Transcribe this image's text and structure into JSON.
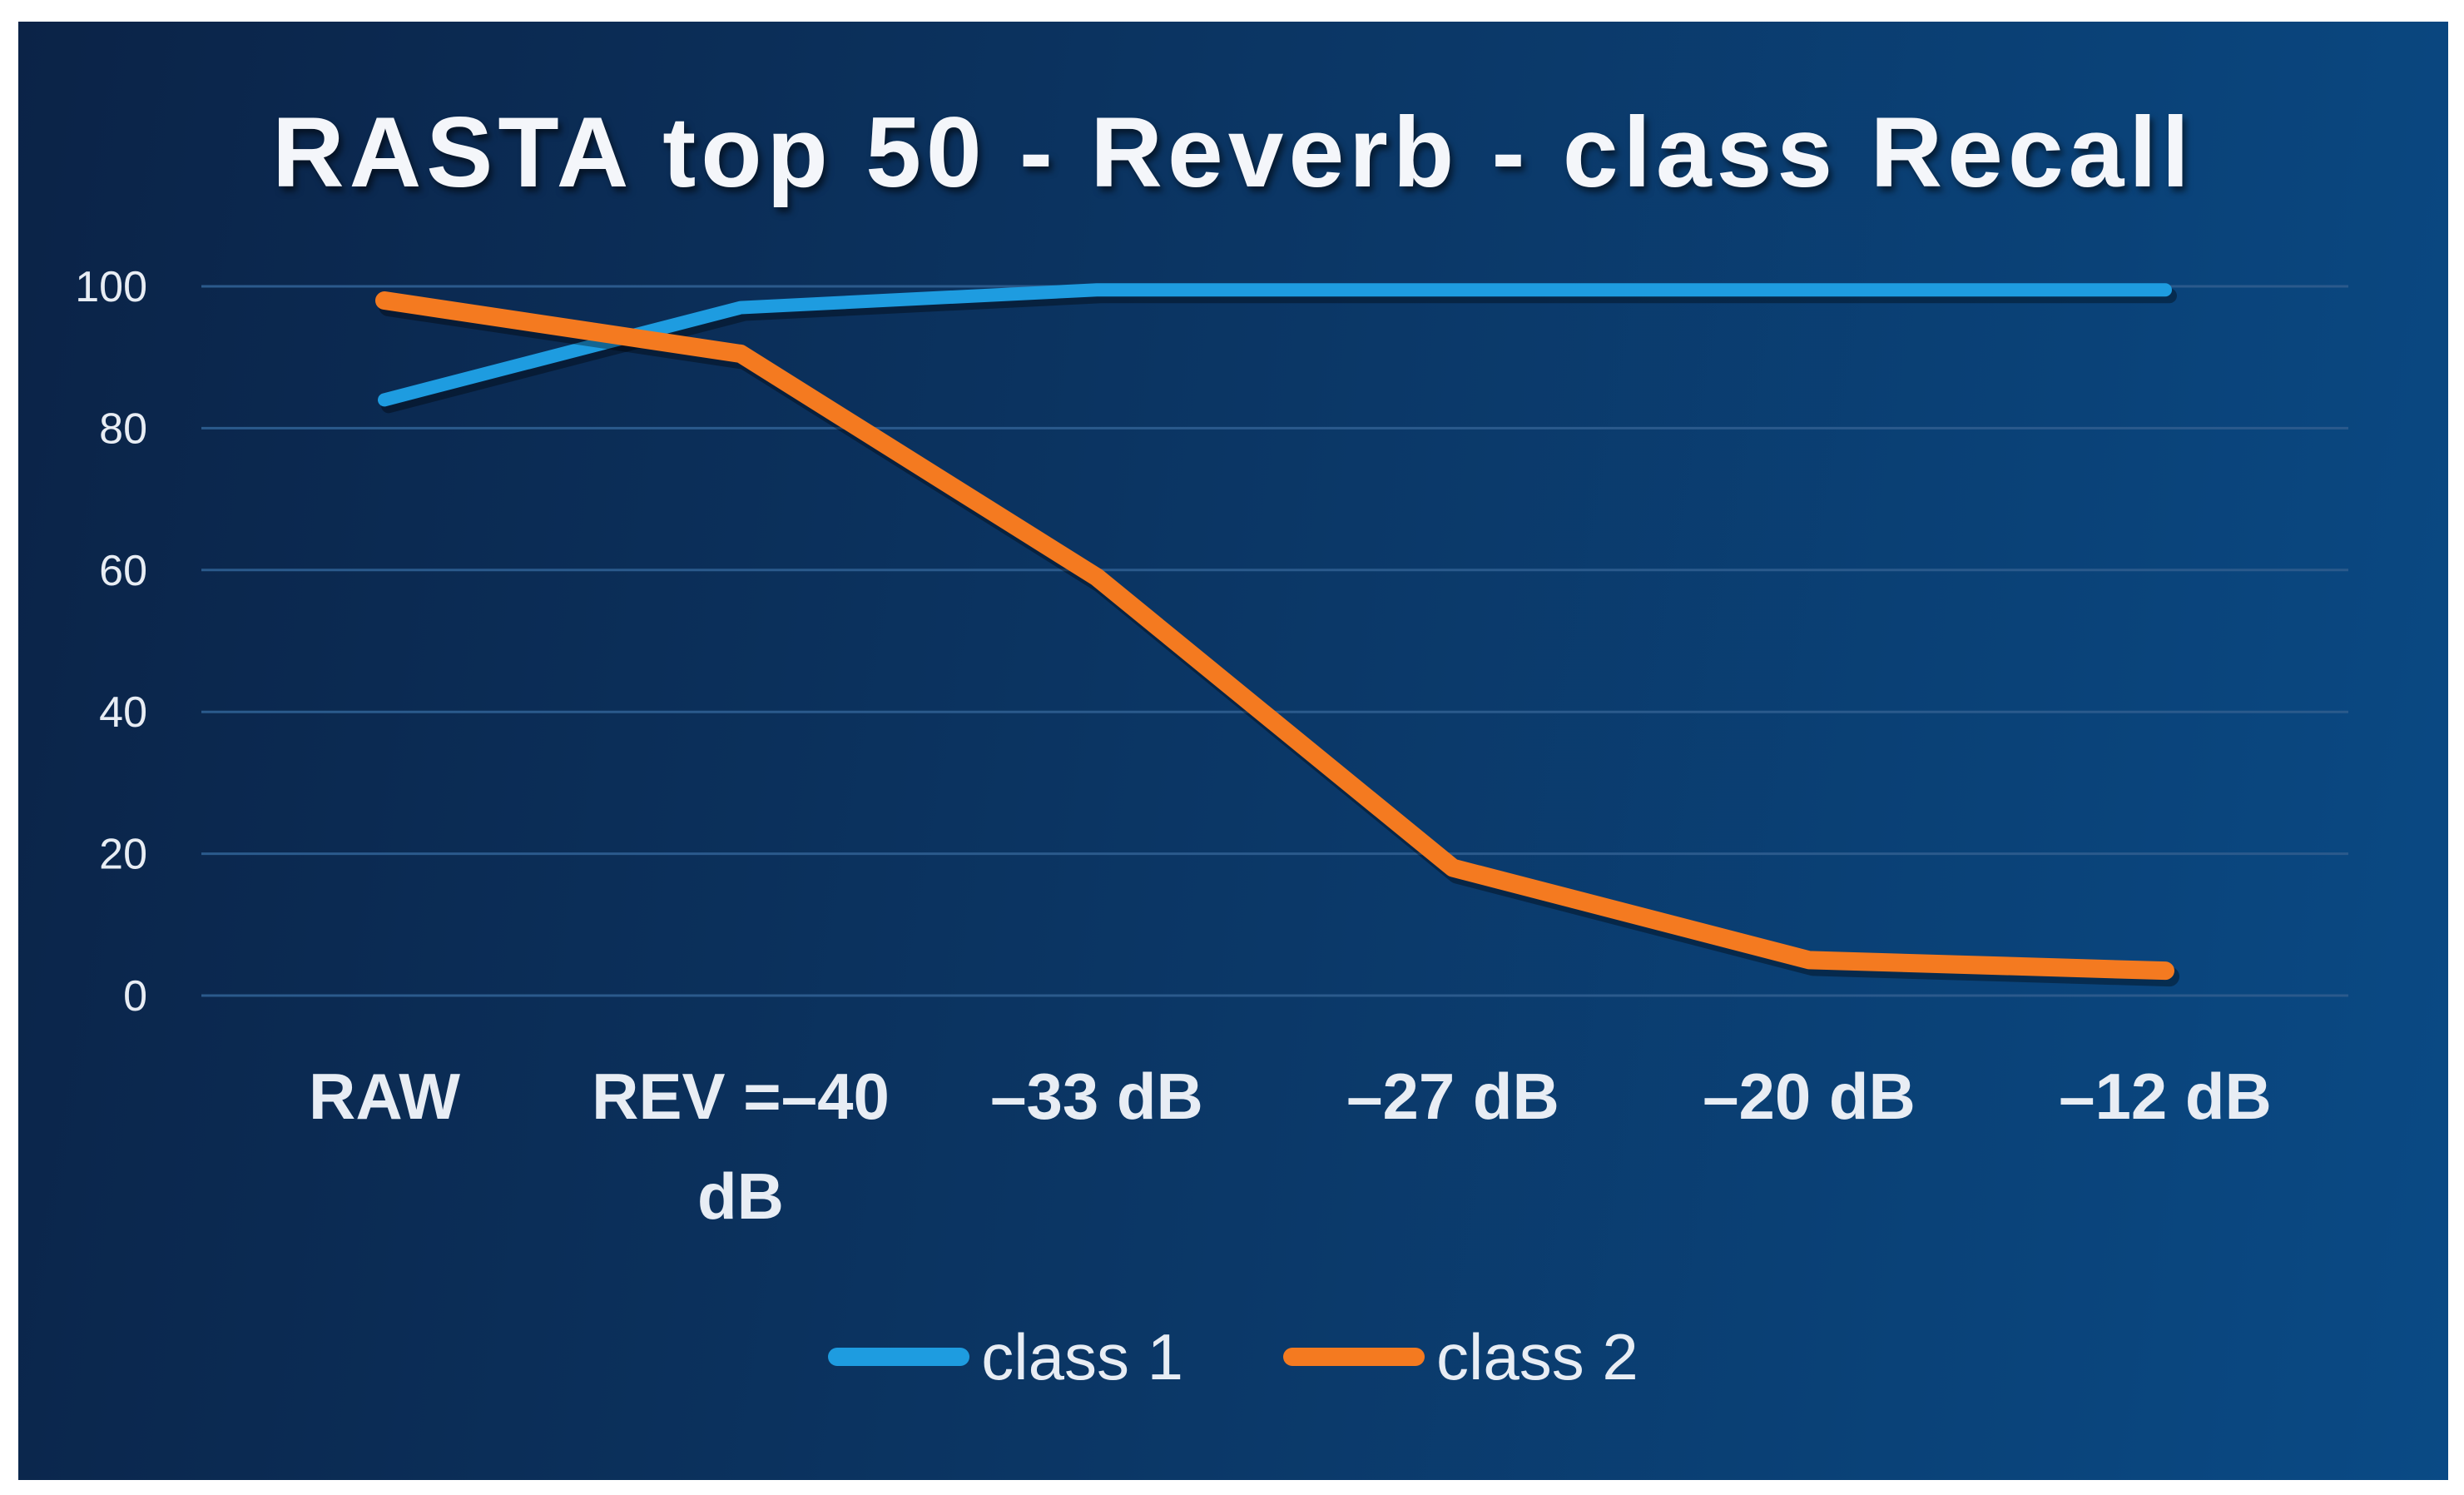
{
  "chart_data": {
    "type": "line",
    "title": "RASTA top 50 - Reverb - class Recall",
    "categories": [
      [
        "RAW"
      ],
      [
        "REV =–40",
        "dB"
      ],
      [
        "–33 dB"
      ],
      [
        "–27 dB"
      ],
      [
        "–20 dB"
      ],
      [
        "–12 dB"
      ]
    ],
    "series": [
      {
        "name": "class 1",
        "color": "#1e9ce0",
        "values": [
          84,
          97,
          99.5,
          99.5,
          99.5,
          99.5
        ]
      },
      {
        "name": "class 2",
        "color": "#f47a20",
        "values": [
          98,
          90.5,
          59,
          18,
          5,
          3.5
        ]
      }
    ],
    "yticks": [
      "0",
      "20",
      "40",
      "60",
      "80",
      "100"
    ],
    "ylim": [
      0,
      100
    ],
    "xlabel": "",
    "ylabel": "",
    "grid": true,
    "legend": "bottom"
  }
}
